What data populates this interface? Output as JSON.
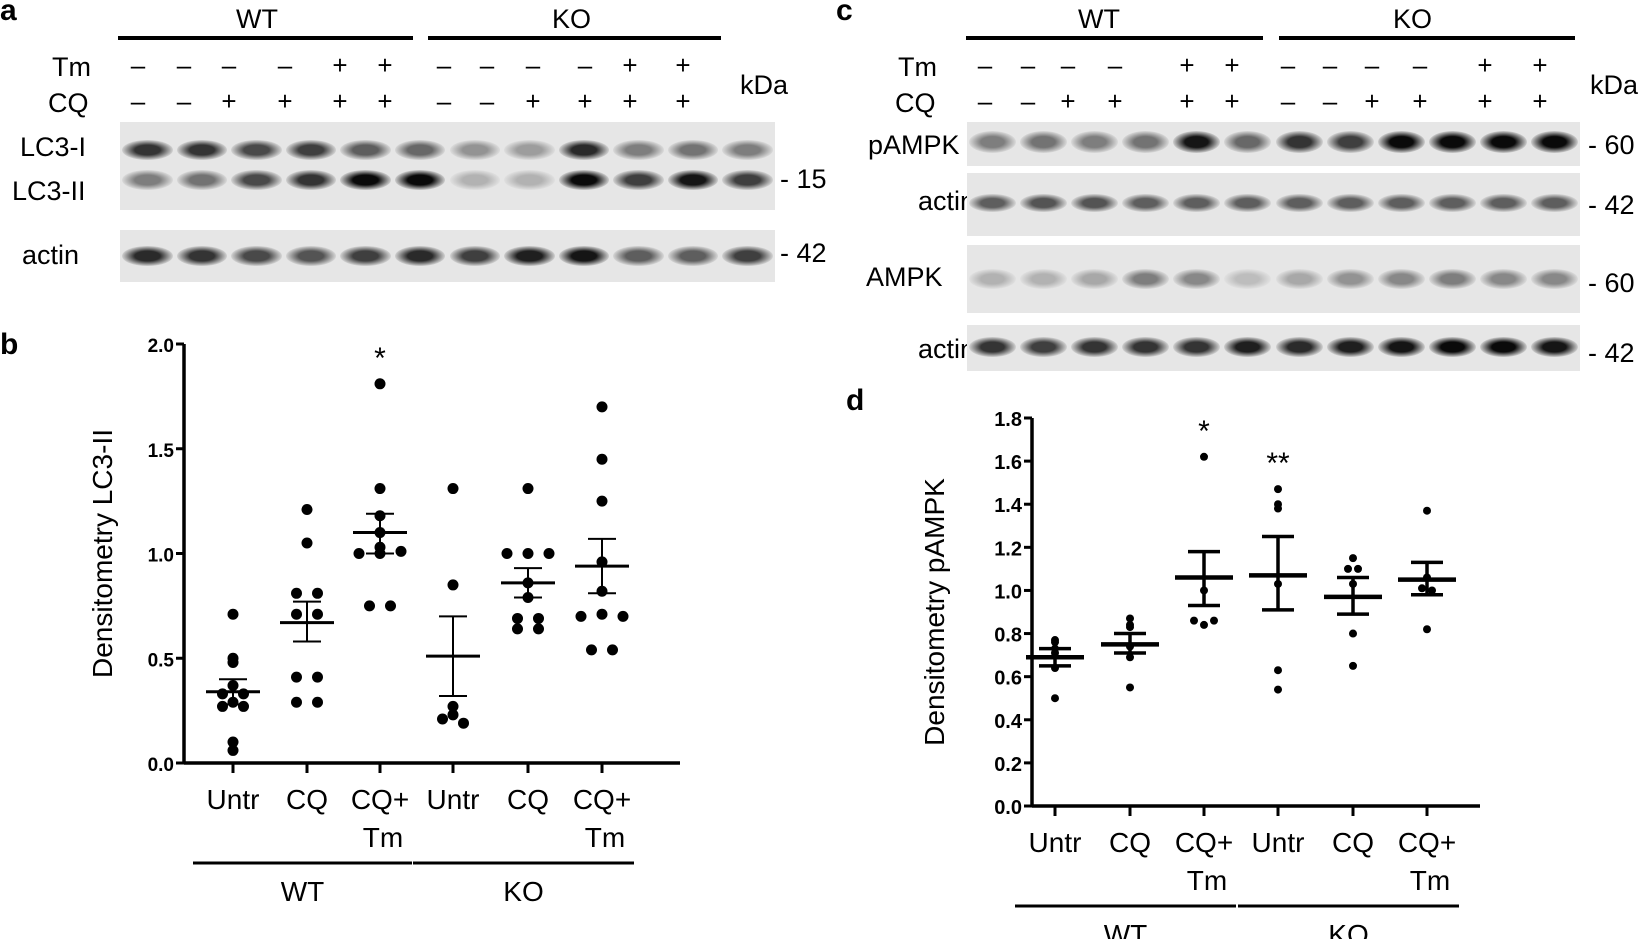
{
  "figure": {
    "panels": {
      "a": {
        "letter": "a",
        "groups": [
          "WT",
          "KO"
        ],
        "row_labels": [
          "Tm",
          "CQ"
        ],
        "tm": [
          "–",
          "–",
          "–",
          "–",
          "+",
          "+",
          "–",
          "–",
          "–",
          "–",
          "+",
          "+"
        ],
        "cq": [
          "–",
          "–",
          "+",
          "+",
          "+",
          "+",
          "–",
          "–",
          "+",
          "+",
          "+",
          "+"
        ],
        "kda_label": "kDa",
        "blots": [
          {
            "labels": [
              "LC3-I",
              "LC3-II"
            ],
            "marker": "- 15"
          },
          {
            "labels": [
              "actin"
            ],
            "marker": "- 42"
          }
        ]
      },
      "c": {
        "letter": "c",
        "groups": [
          "WT",
          "KO"
        ],
        "row_labels": [
          "Tm",
          "CQ"
        ],
        "tm": [
          "–",
          "–",
          "–",
          "–",
          "+",
          "+",
          "–",
          "–",
          "–",
          "–",
          "+",
          "+"
        ],
        "cq": [
          "–",
          "–",
          "+",
          "+",
          "+",
          "+",
          "–",
          "–",
          "+",
          "+",
          "+",
          "+"
        ],
        "kda_label": "kDa",
        "blots": [
          {
            "labels": [
              "pAMPK"
            ],
            "marker": "- 60"
          },
          {
            "labels": [
              "actin"
            ],
            "marker": "- 42"
          },
          {
            "labels": [
              "AMPK"
            ],
            "marker": "- 60"
          },
          {
            "labels": [
              "actin"
            ],
            "marker": "- 42"
          }
        ]
      },
      "b": {
        "letter": "b"
      },
      "d": {
        "letter": "d"
      }
    }
  },
  "chart_data": [
    {
      "panel": "b",
      "type": "scatter",
      "title": "",
      "xlabel": "",
      "ylabel": "Densitometry LC3-II",
      "ylim": [
        0,
        2.0
      ],
      "yticks": [
        "0.0",
        "0.5",
        "1.0",
        "1.5",
        "2.0"
      ],
      "categories": [
        "Untr",
        "CQ",
        "CQ+\nTm",
        "Untr",
        "CQ",
        "CQ+\nTm"
      ],
      "group_labels": [
        {
          "label": "WT",
          "span": [
            0,
            2
          ]
        },
        {
          "label": "KO",
          "span": [
            3,
            5
          ]
        }
      ],
      "grid": false,
      "series": [
        {
          "name": "WT Untr",
          "points": [
            0.71,
            0.5,
            0.48,
            0.37,
            0.33,
            0.33,
            0.29,
            0.27,
            0.27,
            0.1,
            0.06
          ],
          "mean": 0.34,
          "sem": [
            0.28,
            0.4
          ]
        },
        {
          "name": "WT CQ",
          "points": [
            1.21,
            1.05,
            0.81,
            0.81,
            0.71,
            0.71,
            0.41,
            0.41,
            0.29,
            0.29
          ],
          "mean": 0.67,
          "sem": [
            0.58,
            0.77
          ]
        },
        {
          "name": "WT CQ+Tm",
          "points": [
            1.81,
            1.31,
            1.18,
            1.1,
            1.03,
            1.0,
            1.0,
            1.01,
            0.75,
            0.75
          ],
          "mean": 1.1,
          "sem": [
            1.0,
            1.19
          ],
          "annotation": "*"
        },
        {
          "name": "KO Untr",
          "points": [
            1.31,
            0.85,
            0.27,
            0.23,
            0.21,
            0.19
          ],
          "mean": 0.51,
          "sem": [
            0.32,
            0.7
          ]
        },
        {
          "name": "KO CQ",
          "points": [
            1.31,
            1.0,
            1.0,
            1.0,
            0.86,
            0.79,
            0.69,
            0.69,
            0.64,
            0.64
          ],
          "mean": 0.86,
          "sem": [
            0.79,
            0.93
          ]
        },
        {
          "name": "KO CQ+Tm",
          "points": [
            1.7,
            1.45,
            1.25,
            0.96,
            0.82,
            0.7,
            0.71,
            0.7,
            0.54,
            0.54
          ],
          "mean": 0.94,
          "sem": [
            0.81,
            1.07
          ]
        }
      ]
    },
    {
      "panel": "d",
      "type": "scatter",
      "title": "",
      "xlabel": "",
      "ylabel": "Densitometry pAMPK",
      "ylim": [
        0,
        1.8
      ],
      "yticks": [
        "0.0",
        "0.2",
        "0.4",
        "0.6",
        "0.8",
        "1.0",
        "1.2",
        "1.4",
        "1.6",
        "1.8"
      ],
      "categories": [
        "Untr",
        "CQ",
        "CQ+\nTm",
        "Untr",
        "CQ",
        "CQ+\nTm"
      ],
      "group_labels": [
        {
          "label": "WT",
          "span": [
            0,
            2
          ]
        },
        {
          "label": "KO",
          "span": [
            3,
            5
          ]
        }
      ],
      "grid": false,
      "series": [
        {
          "name": "WT Untr",
          "points": [
            0.77,
            0.76,
            0.73,
            0.71,
            0.64,
            0.5
          ],
          "mean": 0.69,
          "sem": [
            0.65,
            0.73
          ]
        },
        {
          "name": "WT CQ",
          "points": [
            0.87,
            0.84,
            0.83,
            0.74,
            0.69,
            0.55
          ],
          "mean": 0.75,
          "sem": [
            0.71,
            0.8
          ]
        },
        {
          "name": "WT CQ+Tm",
          "points": [
            1.62,
            1.0,
            0.86,
            0.84,
            0.86
          ],
          "mean": 1.06,
          "sem": [
            0.93,
            1.18
          ],
          "annotation": "*"
        },
        {
          "name": "KO Untr",
          "points": [
            1.47,
            1.4,
            1.38,
            1.03,
            0.63,
            0.54
          ],
          "mean": 1.07,
          "sem": [
            0.91,
            1.25
          ],
          "annotation": "**"
        },
        {
          "name": "KO CQ",
          "points": [
            1.15,
            1.1,
            1.1,
            1.03,
            0.8,
            0.65
          ],
          "mean": 0.97,
          "sem": [
            0.89,
            1.06
          ]
        },
        {
          "name": "KO CQ+Tm",
          "points": [
            1.37,
            1.06,
            1.01,
            1.0,
            0.82
          ],
          "mean": 1.05,
          "sem": [
            0.98,
            1.13
          ]
        }
      ]
    }
  ]
}
